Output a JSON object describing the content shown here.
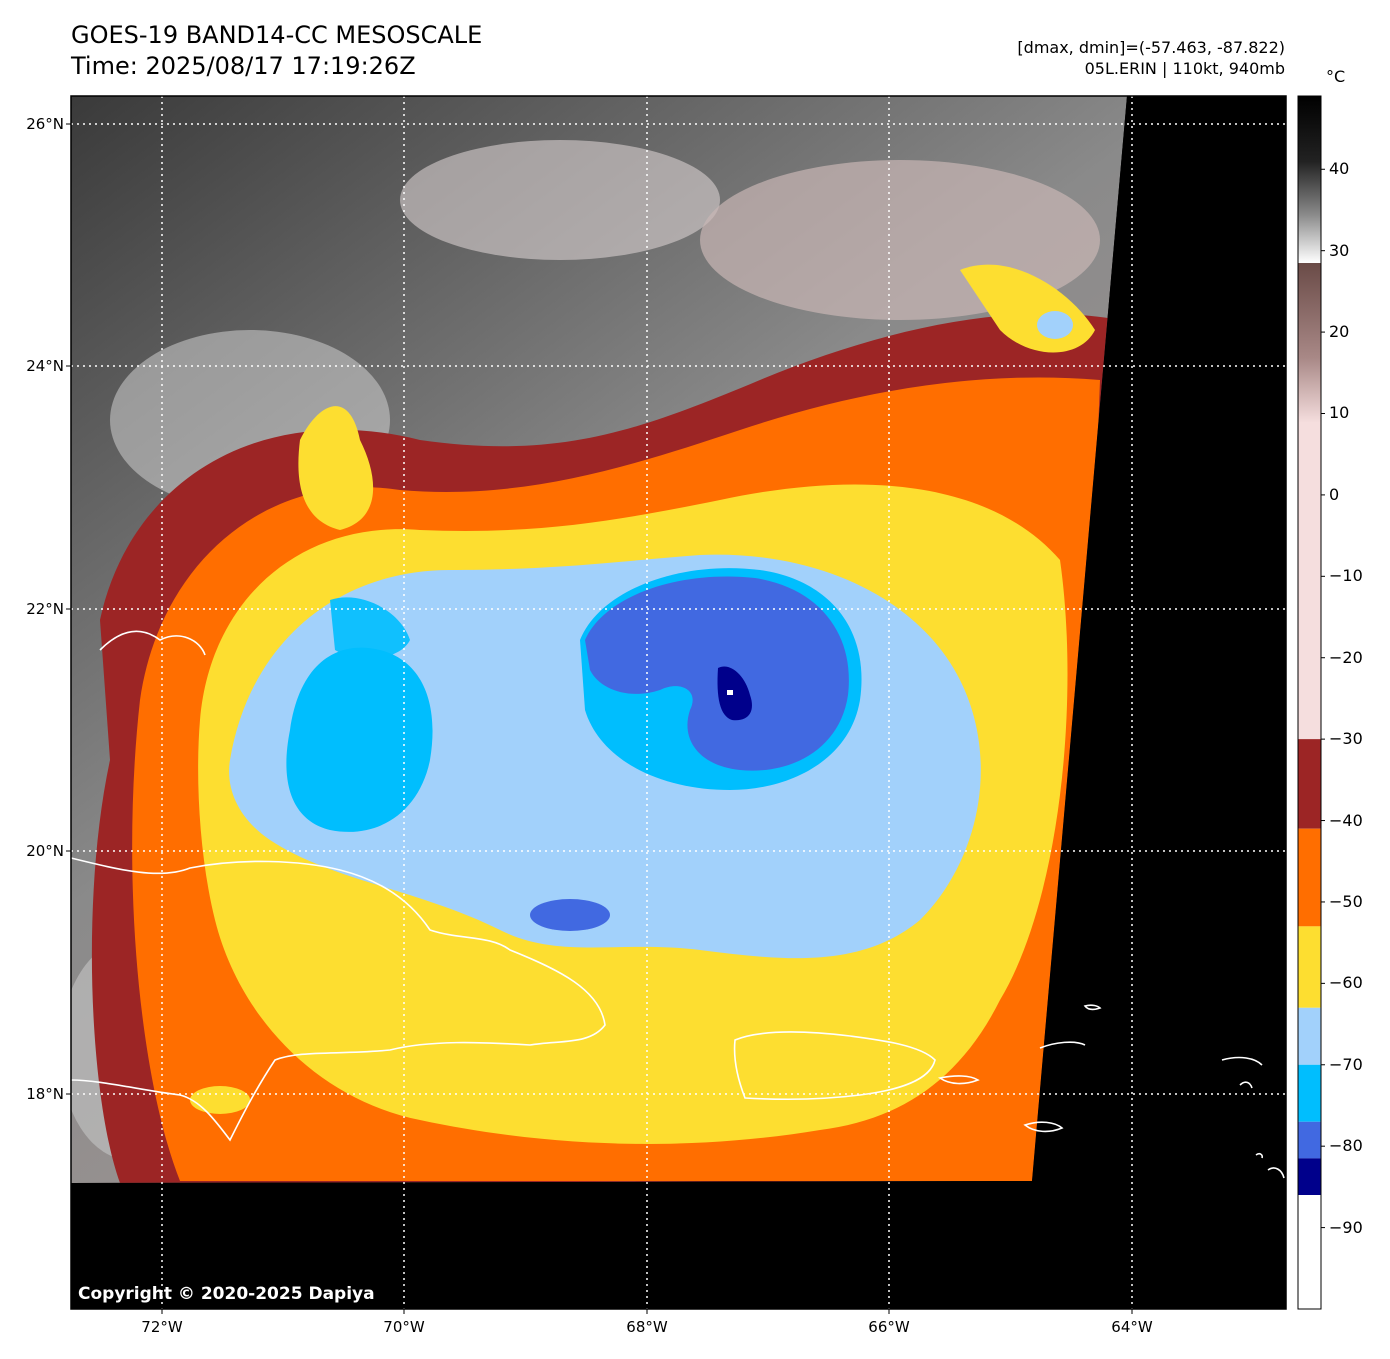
{
  "header": {
    "title_line1": "GOES-19 BAND14-CC MESOSCALE",
    "title_line2": "Time: 2025/08/17 17:19:26Z",
    "range_text": "[dmax, dmin]=(-57.463, -87.822)",
    "storm_text": "05L.ERIN | 110kt, 940mb"
  },
  "map": {
    "lat_labels": [
      "26°N",
      "24°N",
      "22°N",
      "20°N",
      "18°N"
    ],
    "lon_labels": [
      "72°W",
      "70°W",
      "68°W",
      "66°W",
      "64°W"
    ],
    "copyright": "Copyright © 2020-2025 Dapiya"
  },
  "colorbar": {
    "unit": "°C",
    "ticks": [
      "40",
      "30",
      "20",
      "10",
      "0",
      "−10",
      "−20",
      "−30",
      "−40",
      "−50",
      "−60",
      "−70",
      "−80",
      "−90"
    ],
    "tick_values": [
      40,
      30,
      20,
      10,
      0,
      -10,
      -20,
      -30,
      -40,
      -50,
      -60,
      -70,
      -80,
      -90
    ],
    "range": [
      -100,
      49
    ],
    "colors": {
      "hot": "#000000",
      "gray_top": "#ffffff",
      "brown": "#6a4b47",
      "pink": "#f5dede",
      "dark_red": "#9c2525",
      "orange": "#ff6e00",
      "yellow": "#fdde30",
      "light_blue": "#a2d1fb",
      "cyan": "#00befe",
      "royal_blue": "#4169e1",
      "navy": "#00008b",
      "white": "#ffffff"
    }
  },
  "colors": {
    "yellow": "#fdde30",
    "orange": "#ff6e00",
    "dark_red": "#9c2525",
    "light_blue": "#a2d1fb",
    "cyan": "#00befe",
    "royal_blue": "#4169e1",
    "navy": "#00008b",
    "pink": "#d9b8b6"
  }
}
